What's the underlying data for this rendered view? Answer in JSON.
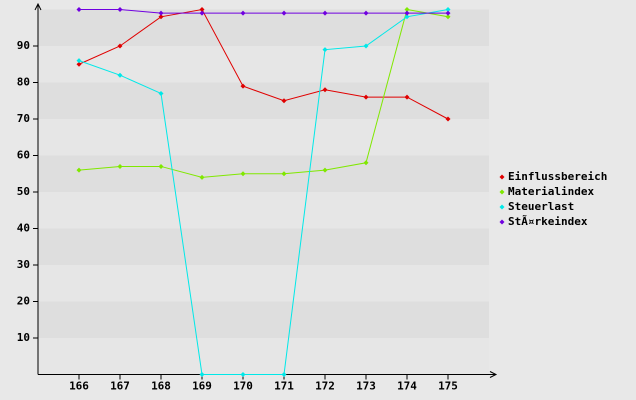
{
  "chart_data": {
    "type": "line",
    "categories": [
      "166",
      "167",
      "168",
      "169",
      "170",
      "171",
      "172",
      "173",
      "174",
      "175"
    ],
    "series": [
      {
        "name": "Einflussbereich",
        "color": "#e00000",
        "values": [
          85,
          90,
          98,
          100,
          79,
          75,
          78,
          76,
          76,
          70
        ]
      },
      {
        "name": "Materialindex",
        "color": "#80e800",
        "values": [
          56,
          57,
          57,
          54,
          55,
          55,
          56,
          58,
          100,
          98
        ]
      },
      {
        "name": "Steuerlast",
        "color": "#00e8e8",
        "values": [
          86,
          82,
          77,
          0,
          0,
          0,
          89,
          90,
          98,
          100
        ]
      },
      {
        "name": "StÃ¤rkeindex",
        "color": "#7000e0",
        "values": [
          100,
          100,
          99,
          99,
          99,
          99,
          99,
          99,
          99,
          99
        ]
      }
    ],
    "ylim": [
      0,
      100
    ],
    "yticks": [
      10,
      20,
      30,
      40,
      50,
      60,
      70,
      80,
      90
    ],
    "grid": true,
    "legend": "right"
  }
}
